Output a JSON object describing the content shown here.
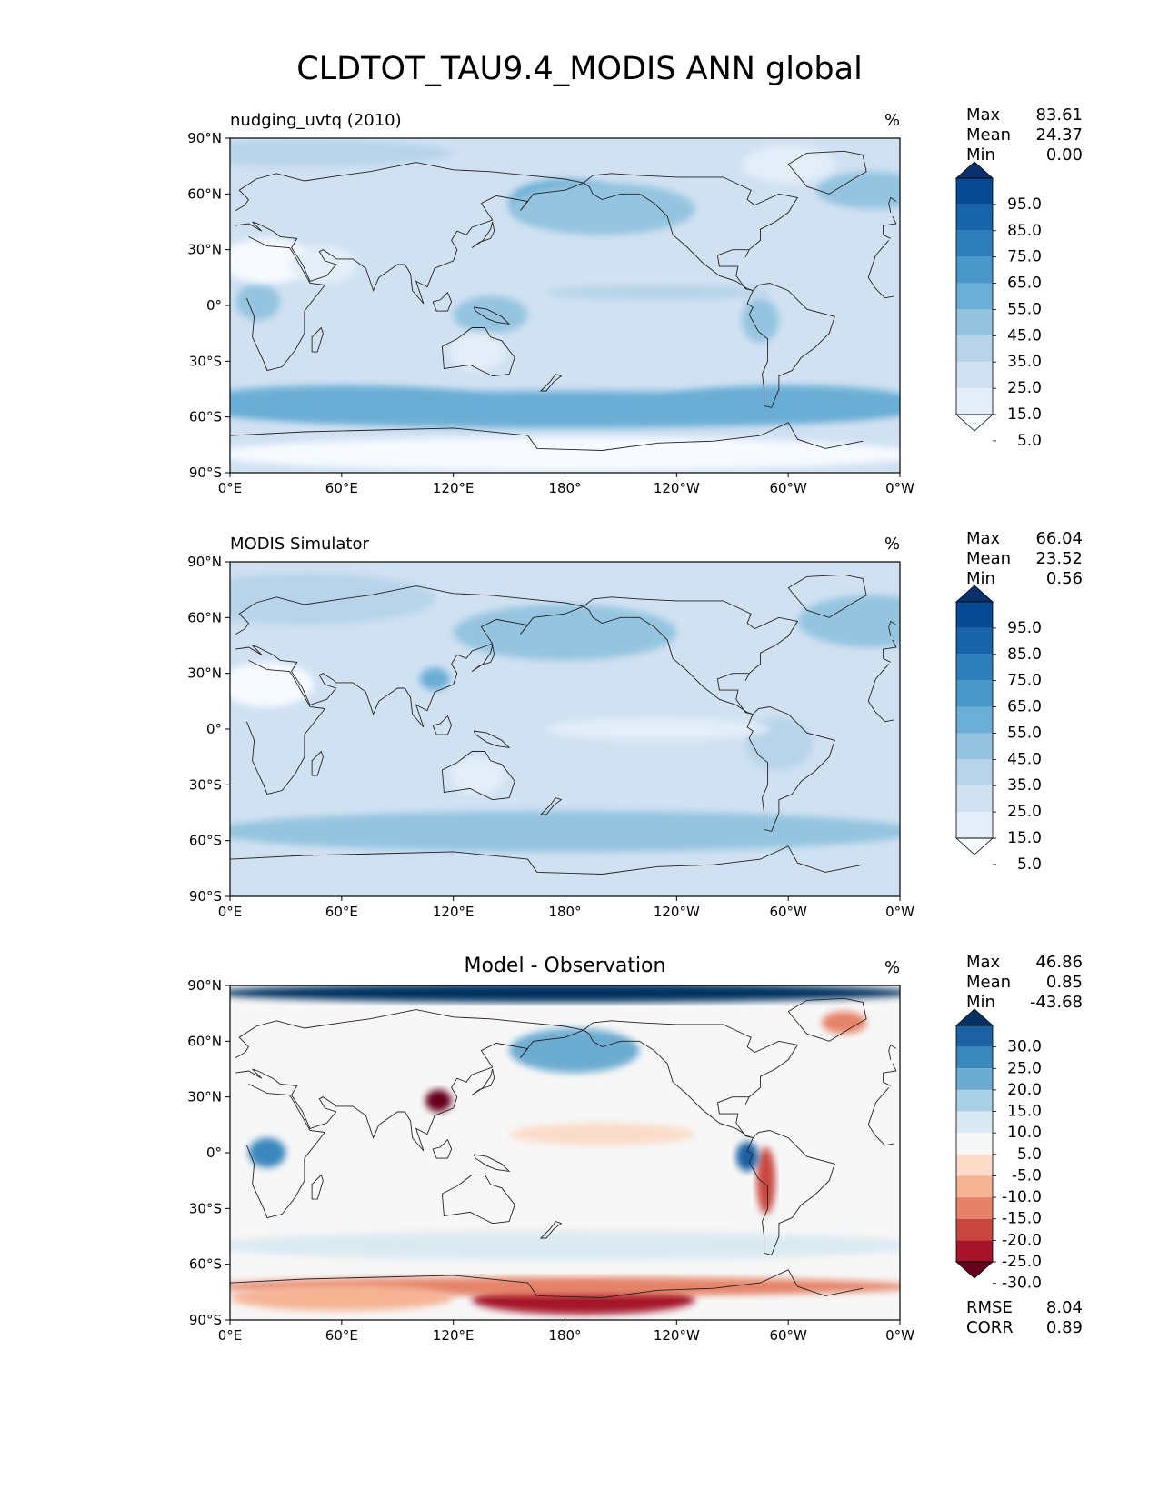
{
  "figure": {
    "title": "CLDTOT_TAU9.4_MODIS ANN global"
  },
  "axes": {
    "lat_ticks": [
      "90°N",
      "60°N",
      "30°N",
      "0°",
      "30°S",
      "60°S",
      "90°S"
    ],
    "lon_ticks": [
      "0°E",
      "60°E",
      "120°E",
      "180°",
      "120°W",
      "60°W",
      "0°W"
    ]
  },
  "panels": [
    {
      "id": "test",
      "left_title": "nudging_uvtq (2010)",
      "center_title": "",
      "units": "%",
      "stats": [
        {
          "label": "Max",
          "value": "83.61"
        },
        {
          "label": "Mean",
          "value": "24.37"
        },
        {
          "label": "Min",
          "value": "0.00"
        }
      ],
      "colorbar": {
        "labels": [
          "95.0",
          "85.0",
          "75.0",
          "65.0",
          "55.0",
          "45.0",
          "35.0",
          "25.0",
          "15.0",
          "5.0"
        ],
        "colors": [
          "#f7fbff",
          "#e3eef9",
          "#d0e1f2",
          "#b7d4ea",
          "#94c4df",
          "#6baed6",
          "#4a98c9",
          "#2e7ebc",
          "#1764ab",
          "#084a91",
          "#08306b"
        ]
      }
    },
    {
      "id": "ref",
      "left_title": "MODIS Simulator",
      "center_title": "",
      "units": "%",
      "stats": [
        {
          "label": "Max",
          "value": "66.04"
        },
        {
          "label": "Mean",
          "value": "23.52"
        },
        {
          "label": "Min",
          "value": "0.56"
        }
      ],
      "colorbar": {
        "labels": [
          "95.0",
          "85.0",
          "75.0",
          "65.0",
          "55.0",
          "45.0",
          "35.0",
          "25.0",
          "15.0",
          "5.0"
        ],
        "colors": [
          "#f7fbff",
          "#e3eef9",
          "#d0e1f2",
          "#b7d4ea",
          "#94c4df",
          "#6baed6",
          "#4a98c9",
          "#2e7ebc",
          "#1764ab",
          "#084a91",
          "#08306b"
        ]
      }
    },
    {
      "id": "diff",
      "left_title": "",
      "center_title": "Model - Observation",
      "units": "%",
      "stats": [
        {
          "label": "Max",
          "value": "46.86"
        },
        {
          "label": "Mean",
          "value": "0.85"
        },
        {
          "label": "Min",
          "value": "-43.68"
        }
      ],
      "extra_stats": [
        {
          "label": "RMSE",
          "value": "8.04"
        },
        {
          "label": "CORR",
          "value": "0.89"
        }
      ],
      "colorbar": {
        "labels": [
          "30.0",
          "25.0",
          "20.0",
          "15.0",
          "10.0",
          "5.0",
          "-5.0",
          "-10.0",
          "-15.0",
          "-20.0",
          "-25.0",
          "-30.0"
        ],
        "colors": [
          "#67001f",
          "#a51429",
          "#c94741",
          "#e58368",
          "#f6b394",
          "#fbdcc9",
          "#f7f7f7",
          "#dbeaf2",
          "#a9d0e5",
          "#6dacd1",
          "#3a87bd",
          "#1b61a4",
          "#053061"
        ]
      }
    }
  ],
  "chart_data": {
    "type": "heatmap",
    "title": "CLDTOT_TAU9.4_MODIS ANN global",
    "xlabel": "",
    "ylabel": "",
    "xlim": [
      0,
      360
    ],
    "ylim": [
      -90,
      90
    ],
    "panels": [
      {
        "name": "nudging_uvtq (2010)",
        "units": "%",
        "levels": [
          5,
          15,
          25,
          35,
          45,
          55,
          65,
          75,
          85,
          95
        ],
        "features": [
          {
            "lon": 180,
            "lat": -56,
            "dlon": 190,
            "dlat": 10,
            "value": 52
          },
          {
            "lon": 60,
            "lat": -52,
            "dlon": 80,
            "dlat": 9,
            "value": 48
          },
          {
            "lon": 300,
            "lat": -52,
            "dlon": 70,
            "dlat": 9,
            "value": 48
          },
          {
            "lon": 180,
            "lat": -80,
            "dlon": 190,
            "dlat": 9,
            "value": 3
          },
          {
            "lon": 180,
            "lat": 56,
            "dlon": 30,
            "dlat": 12,
            "value": 45
          },
          {
            "lon": 200,
            "lat": 52,
            "dlon": 50,
            "dlat": 14,
            "value": 42
          },
          {
            "lon": 345,
            "lat": 62,
            "dlon": 30,
            "dlat": 10,
            "value": 40
          },
          {
            "lon": 40,
            "lat": 82,
            "dlon": 80,
            "dlat": 7,
            "value": 32
          },
          {
            "lon": 300,
            "lat": 76,
            "dlon": 25,
            "dlat": 10,
            "value": 12
          },
          {
            "lon": 140,
            "lat": -5,
            "dlon": 20,
            "dlat": 10,
            "value": 40
          },
          {
            "lon": 15,
            "lat": 2,
            "dlon": 12,
            "dlat": 10,
            "value": 38
          },
          {
            "lon": 285,
            "lat": -8,
            "dlon": 10,
            "dlat": 12,
            "value": 35
          },
          {
            "lon": 20,
            "lat": 24,
            "dlon": 25,
            "dlat": 12,
            "value": 3
          },
          {
            "lon": 50,
            "lat": 22,
            "dlon": 18,
            "dlat": 10,
            "value": 8
          },
          {
            "lon": 133,
            "lat": -25,
            "dlon": 15,
            "dlat": 10,
            "value": 12
          },
          {
            "lon": 230,
            "lat": 7,
            "dlon": 60,
            "dlat": 4,
            "value": 25
          }
        ]
      },
      {
        "name": "MODIS Simulator",
        "units": "%",
        "levels": [
          5,
          15,
          25,
          35,
          45,
          55,
          65,
          75,
          85,
          95
        ],
        "features": [
          {
            "lon": 180,
            "lat": -55,
            "dlon": 190,
            "dlat": 11,
            "value": 40
          },
          {
            "lon": 180,
            "lat": -80,
            "dlon": 190,
            "dlat": 9,
            "value": 18
          },
          {
            "lon": 180,
            "lat": 52,
            "dlon": 60,
            "dlat": 15,
            "value": 38
          },
          {
            "lon": 345,
            "lat": 58,
            "dlon": 40,
            "dlat": 14,
            "value": 36
          },
          {
            "lon": 40,
            "lat": 70,
            "dlon": 70,
            "dlat": 14,
            "value": 30
          },
          {
            "lon": 110,
            "lat": 27,
            "dlon": 8,
            "dlat": 6,
            "value": 45
          },
          {
            "lon": 295,
            "lat": -8,
            "dlon": 18,
            "dlat": 14,
            "value": 32
          },
          {
            "lon": 20,
            "lat": 24,
            "dlon": 25,
            "dlat": 12,
            "value": 3
          },
          {
            "lon": 230,
            "lat": 0,
            "dlon": 60,
            "dlat": 6,
            "value": 6
          },
          {
            "lon": 133,
            "lat": -25,
            "dlon": 15,
            "dlat": 10,
            "value": 10
          }
        ]
      },
      {
        "name": "Model - Observation",
        "units": "%",
        "levels": [
          -30,
          -25,
          -20,
          -15,
          -10,
          -5,
          5,
          10,
          15,
          20,
          25,
          30
        ],
        "features": [
          {
            "lon": 180,
            "lat": 86,
            "dlon": 190,
            "dlat": 5,
            "value": 32
          },
          {
            "lon": 190,
            "lat": -79,
            "dlon": 60,
            "dlat": 8,
            "value": -30
          },
          {
            "lon": 180,
            "lat": -72,
            "dlon": 190,
            "dlat": 5,
            "value": -20
          },
          {
            "lon": 60,
            "lat": -78,
            "dlon": 60,
            "dlat": 7,
            "value": -14
          },
          {
            "lon": 112,
            "lat": 28,
            "dlon": 7,
            "dlat": 6,
            "value": -32
          },
          {
            "lon": 288,
            "lat": -15,
            "dlon": 5,
            "dlat": 18,
            "value": -25
          },
          {
            "lon": 278,
            "lat": -2,
            "dlon": 6,
            "dlat": 8,
            "value": 27
          },
          {
            "lon": 20,
            "lat": 0,
            "dlon": 10,
            "dlat": 8,
            "value": 22
          },
          {
            "lon": 185,
            "lat": 55,
            "dlon": 35,
            "dlat": 12,
            "value": 17
          },
          {
            "lon": 330,
            "lat": 70,
            "dlon": 12,
            "dlat": 6,
            "value": -20
          },
          {
            "lon": 180,
            "lat": -50,
            "dlon": 190,
            "dlat": 8,
            "value": 8
          },
          {
            "lon": 200,
            "lat": 10,
            "dlon": 50,
            "dlat": 6,
            "value": -8
          }
        ]
      }
    ]
  }
}
